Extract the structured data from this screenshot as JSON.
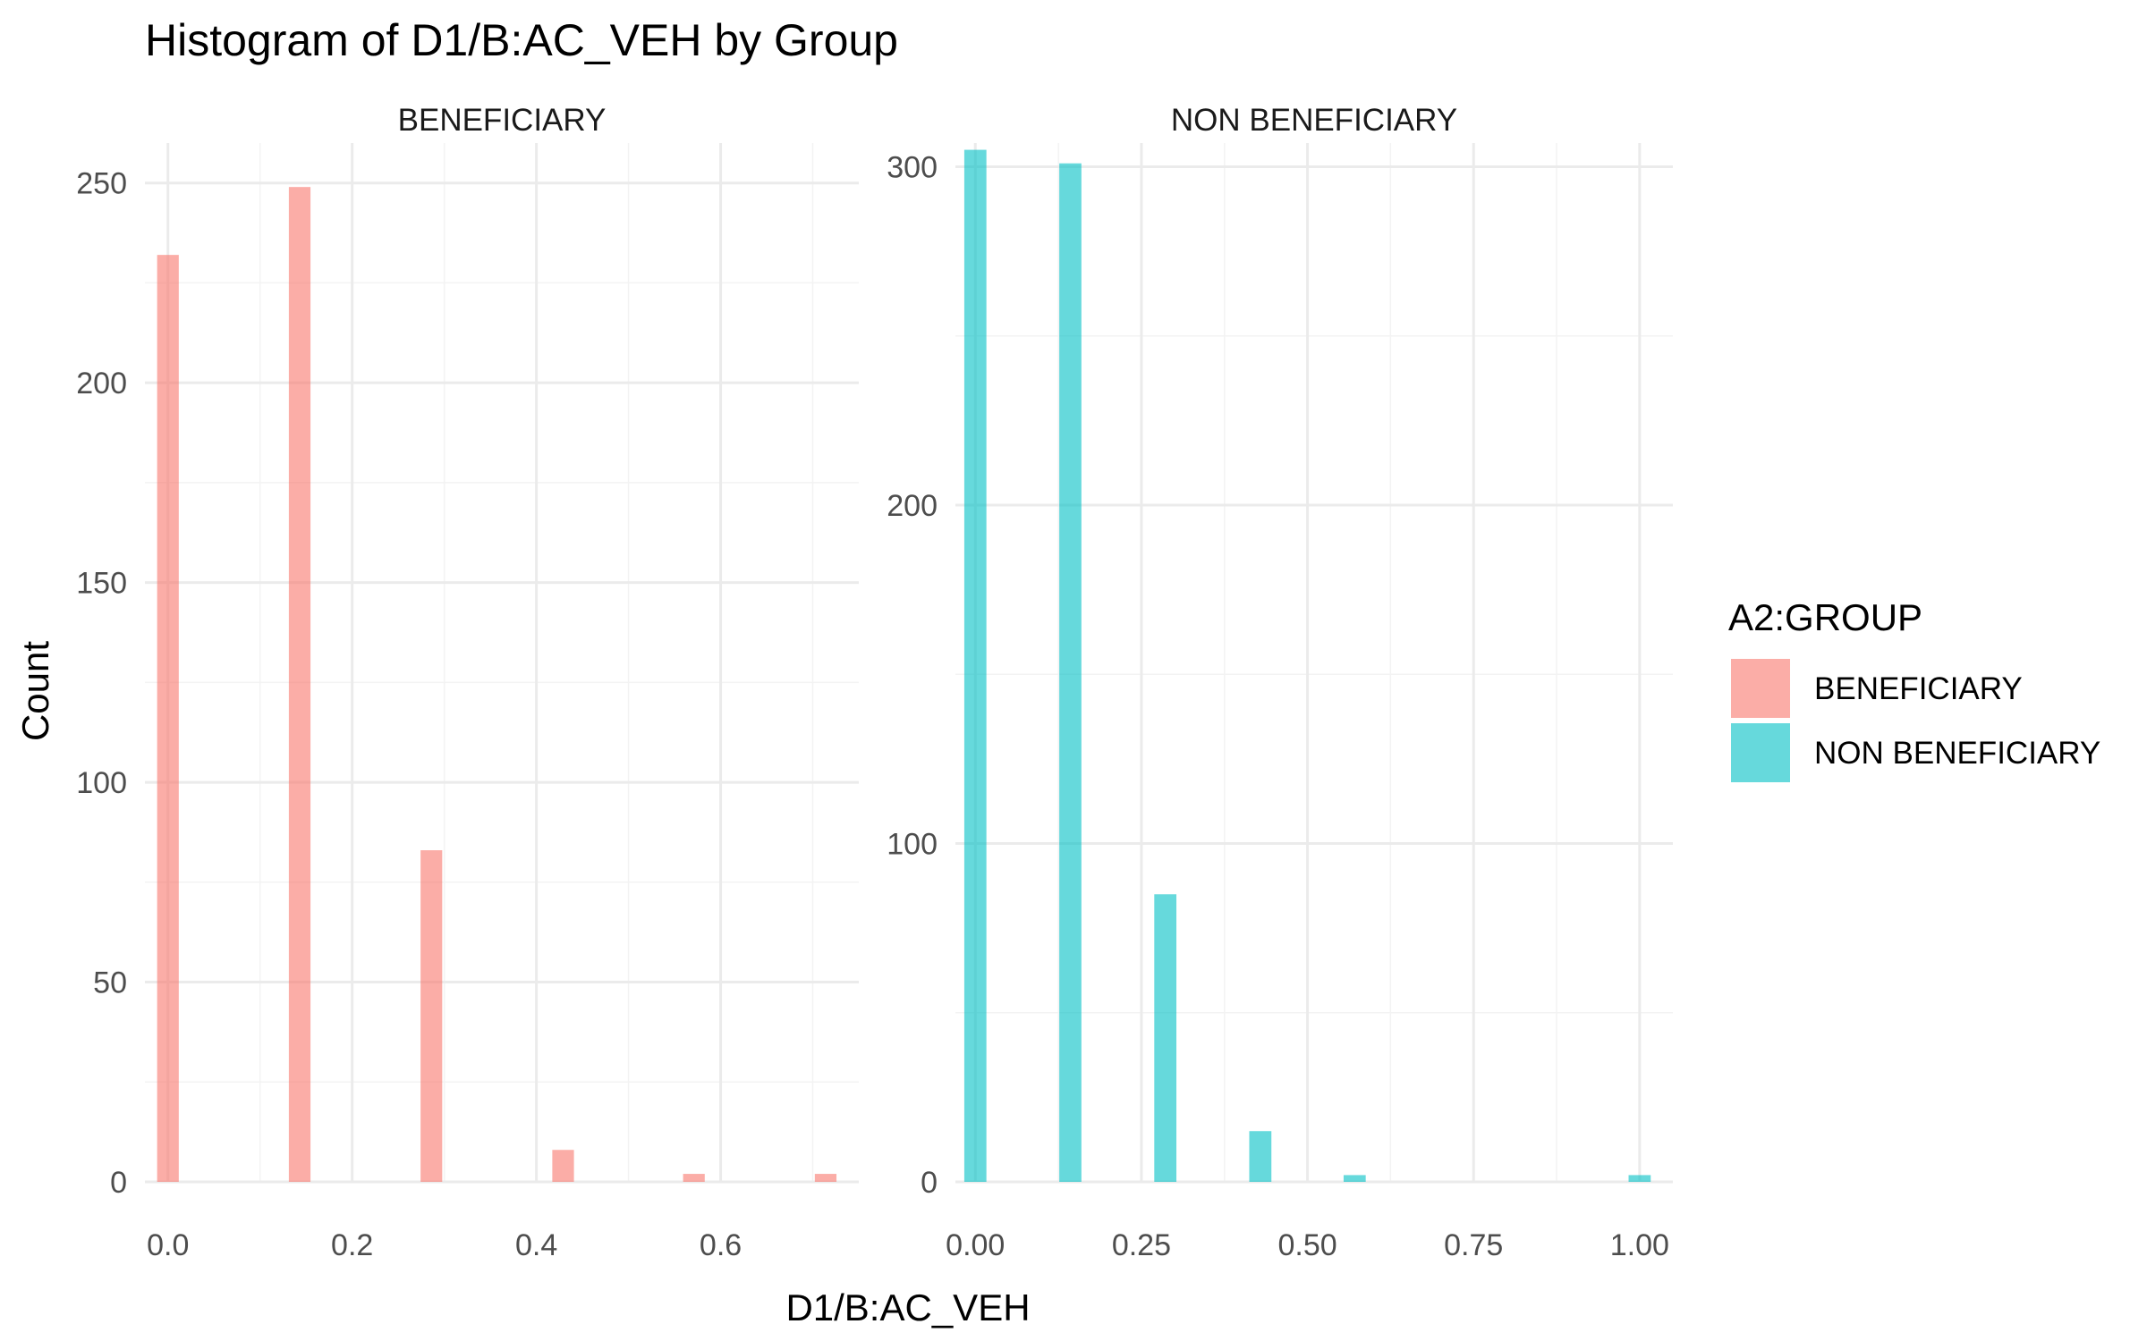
{
  "chart_data": {
    "type": "bar",
    "title": "Histogram of D1/B:AC_VEH by Group",
    "xlabel": "D1/B:AC_VEH",
    "ylabel": "Count",
    "legend": {
      "title": "A2:GROUP",
      "position": "right",
      "entries": [
        {
          "label": "BENEFICIARY",
          "color": "#F8766D"
        },
        {
          "label": "NON BENEFICIARY",
          "color": "#00BFC4"
        }
      ]
    },
    "grid": true,
    "panels": [
      {
        "strip": "BENEFICIARY",
        "color": "#F8766D",
        "xlim": [
          -0.025,
          0.75
        ],
        "ylim": [
          0,
          260
        ],
        "xticks": [
          0.0,
          0.2,
          0.4,
          0.6
        ],
        "xtick_labels": [
          "0.0",
          "0.2",
          "0.4",
          "0.6"
        ],
        "yticks": [
          0,
          50,
          100,
          150,
          200,
          250
        ],
        "ytick_labels": [
          "0",
          "50",
          "100",
          "150",
          "200",
          "250"
        ],
        "bin_width": 0.0235,
        "x": [
          0.0,
          0.143,
          0.286,
          0.429,
          0.571,
          0.714
        ],
        "values": [
          232,
          249,
          83,
          8,
          2,
          2
        ]
      },
      {
        "strip": "NON BENEFICIARY",
        "color": "#00BFC4",
        "xlim": [
          -0.03,
          1.05
        ],
        "ylim": [
          0,
          307
        ],
        "xticks": [
          0.0,
          0.25,
          0.5,
          0.75,
          1.0
        ],
        "xtick_labels": [
          "0.00",
          "0.25",
          "0.50",
          "0.75",
          "1.00"
        ],
        "yticks": [
          0,
          100,
          200,
          300
        ],
        "ytick_labels": [
          "0",
          "100",
          "200",
          "300"
        ],
        "bin_width": 0.0333,
        "x": [
          0.0,
          0.143,
          0.286,
          0.429,
          0.571,
          1.0
        ],
        "values": [
          305,
          301,
          85,
          15,
          2,
          2
        ]
      }
    ]
  }
}
